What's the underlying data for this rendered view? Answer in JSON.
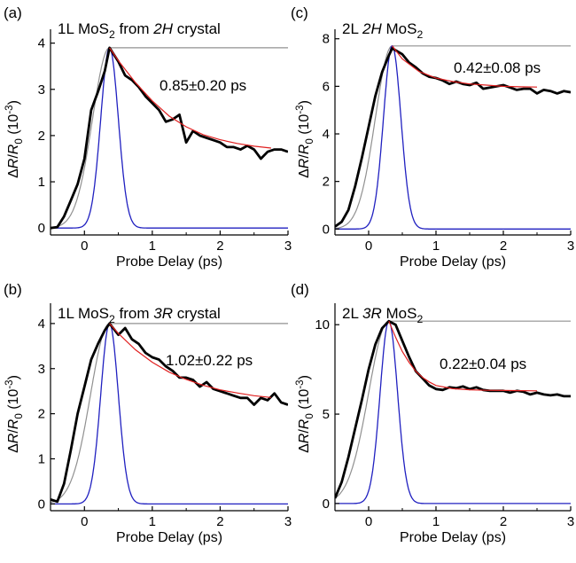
{
  "chart_data": [
    {
      "panel_label": "(a)",
      "title_parts": [
        {
          "t": "1L MoS"
        },
        {
          "t": "2",
          "sub": true
        },
        {
          "t": " from "
        },
        {
          "t": "2",
          "it": true
        },
        {
          "t": "H",
          "it": true
        },
        {
          "t": " crystal"
        }
      ],
      "annotation": "0.85±0.20 ps",
      "type": "line",
      "xlabel": "Probe Delay (ps)",
      "ylabel_parts": [
        {
          "t": "Δ"
        },
        {
          "t": "R",
          "it": true
        },
        {
          "t": "/"
        },
        {
          "t": "R",
          "it": true
        },
        {
          "t": "0",
          "sub": true
        },
        {
          "t": " (10"
        },
        {
          "t": "-3",
          "sup": true
        },
        {
          "t": ")"
        }
      ],
      "xlim": [
        -0.5,
        3
      ],
      "ylim": [
        -0.15,
        4.3
      ],
      "xticks": [
        0,
        1,
        2,
        3
      ],
      "yticks": [
        0,
        1,
        2,
        3,
        4
      ],
      "peak": {
        "x": 0.37,
        "y": 3.9
      },
      "pulse_sigma": 0.13,
      "rise_sigma": 0.25,
      "series": [
        {
          "role": "data",
          "color": "#000000",
          "x": [
            -0.5,
            -0.4,
            -0.3,
            -0.2,
            -0.1,
            0.0,
            0.1,
            0.2,
            0.3,
            0.37,
            0.5,
            0.6,
            0.7,
            0.8,
            0.9,
            1.0,
            1.1,
            1.2,
            1.3,
            1.4,
            1.5,
            1.6,
            1.7,
            1.8,
            1.9,
            2.0,
            2.1,
            2.2,
            2.3,
            2.4,
            2.5,
            2.6,
            2.7,
            2.8,
            2.9,
            3.0
          ],
          "y": [
            0.0,
            0.02,
            0.25,
            0.6,
            0.95,
            1.5,
            2.55,
            2.95,
            3.4,
            3.9,
            3.6,
            3.3,
            3.2,
            3.05,
            2.85,
            2.7,
            2.55,
            2.3,
            2.35,
            2.45,
            1.85,
            2.1,
            2.0,
            1.95,
            1.9,
            1.85,
            1.75,
            1.75,
            1.7,
            1.78,
            1.7,
            1.5,
            1.65,
            1.7,
            1.7,
            1.65
          ]
        },
        {
          "role": "fit",
          "color": "#e02020",
          "x": [
            0.37,
            0.5,
            0.75,
            1.0,
            1.25,
            1.5,
            1.75,
            2.0,
            2.25,
            2.5,
            2.75
          ],
          "y": [
            3.9,
            3.62,
            3.15,
            2.75,
            2.42,
            2.19,
            2.02,
            1.91,
            1.83,
            1.77,
            1.73
          ]
        },
        {
          "role": "rise",
          "color": "#909090"
        },
        {
          "role": "pulse",
          "color": "#2020c0"
        }
      ]
    },
    {
      "panel_label": "(c)",
      "title_parts": [
        {
          "t": "2L "
        },
        {
          "t": "2",
          "it": true
        },
        {
          "t": "H",
          "it": true
        },
        {
          "t": " MoS"
        },
        {
          "t": "2",
          "sub": true
        }
      ],
      "annotation": "0.42±0.08 ps",
      "type": "line",
      "xlabel": "Probe Delay (ps)",
      "ylabel_parts": [
        {
          "t": "Δ"
        },
        {
          "t": "R",
          "it": true
        },
        {
          "t": "/"
        },
        {
          "t": "R",
          "it": true
        },
        {
          "t": "0",
          "sub": true
        },
        {
          "t": " (10"
        },
        {
          "t": "-3",
          "sup": true
        },
        {
          "t": ")"
        }
      ],
      "xlim": [
        -0.5,
        3
      ],
      "ylim": [
        -0.25,
        8.4
      ],
      "xticks": [
        0,
        1,
        2,
        3
      ],
      "yticks": [
        0,
        2,
        4,
        6,
        8
      ],
      "peak": {
        "x": 0.35,
        "y": 7.7
      },
      "pulse_sigma": 0.13,
      "rise_sigma": 0.25,
      "series": [
        {
          "role": "data",
          "color": "#000000",
          "x": [
            -0.5,
            -0.4,
            -0.3,
            -0.2,
            -0.1,
            0.0,
            0.1,
            0.2,
            0.3,
            0.35,
            0.5,
            0.6,
            0.7,
            0.8,
            0.9,
            1.0,
            1.1,
            1.2,
            1.3,
            1.4,
            1.5,
            1.6,
            1.7,
            1.8,
            1.9,
            2.0,
            2.1,
            2.2,
            2.3,
            2.4,
            2.5,
            2.6,
            2.7,
            2.8,
            2.9,
            3.0
          ],
          "y": [
            0.1,
            0.3,
            0.8,
            1.8,
            3.0,
            4.3,
            5.6,
            6.6,
            7.3,
            7.6,
            7.35,
            7.0,
            6.8,
            6.55,
            6.4,
            6.35,
            6.25,
            6.1,
            6.2,
            6.1,
            6.05,
            6.15,
            5.9,
            5.95,
            6.0,
            6.05,
            5.95,
            5.85,
            5.9,
            5.9,
            5.7,
            5.85,
            5.8,
            5.7,
            5.8,
            5.75
          ]
        },
        {
          "role": "fit",
          "color": "#e02020",
          "x": [
            0.35,
            0.5,
            0.75,
            1.0,
            1.25,
            1.5,
            1.75,
            2.0,
            2.25,
            2.5
          ],
          "y": [
            7.7,
            7.15,
            6.62,
            6.35,
            6.2,
            6.1,
            6.05,
            6.0,
            5.98,
            5.97
          ]
        },
        {
          "role": "rise",
          "color": "#909090"
        },
        {
          "role": "pulse",
          "color": "#2020c0"
        }
      ]
    },
    {
      "panel_label": "(b)",
      "title_parts": [
        {
          "t": "1L MoS"
        },
        {
          "t": "2",
          "sub": true
        },
        {
          "t": " from "
        },
        {
          "t": "3",
          "it": true
        },
        {
          "t": "R",
          "it": true
        },
        {
          "t": " crystal"
        }
      ],
      "annotation": "1.02±0.22 ps",
      "type": "line",
      "xlabel": "Probe Delay (ps)",
      "ylabel_parts": [
        {
          "t": "Δ"
        },
        {
          "t": "R",
          "it": true
        },
        {
          "t": "/"
        },
        {
          "t": "R",
          "it": true
        },
        {
          "t": "0",
          "sub": true
        },
        {
          "t": " (10"
        },
        {
          "t": "-3",
          "sup": true
        },
        {
          "t": ")"
        }
      ],
      "xlim": [
        -0.5,
        3
      ],
      "ylim": [
        -0.15,
        4.45
      ],
      "xticks": [
        0,
        1,
        2,
        3
      ],
      "yticks": [
        0,
        1,
        2,
        3,
        4
      ],
      "peak": {
        "x": 0.37,
        "y": 4.0
      },
      "pulse_sigma": 0.13,
      "rise_sigma": 0.28,
      "series": [
        {
          "role": "data",
          "color": "#000000",
          "x": [
            -0.5,
            -0.4,
            -0.3,
            -0.2,
            -0.1,
            0.0,
            0.1,
            0.2,
            0.3,
            0.37,
            0.5,
            0.6,
            0.7,
            0.8,
            0.9,
            1.0,
            1.1,
            1.2,
            1.3,
            1.4,
            1.5,
            1.6,
            1.7,
            1.8,
            1.9,
            2.0,
            2.1,
            2.2,
            2.3,
            2.4,
            2.5,
            2.6,
            2.7,
            2.8,
            2.9,
            3.0
          ],
          "y": [
            0.1,
            0.05,
            0.45,
            1.2,
            2.0,
            2.6,
            3.2,
            3.55,
            3.85,
            4.0,
            3.75,
            3.9,
            3.65,
            3.55,
            3.35,
            3.25,
            3.2,
            3.05,
            2.95,
            2.8,
            2.8,
            2.75,
            2.6,
            2.7,
            2.55,
            2.5,
            2.45,
            2.4,
            2.35,
            2.35,
            2.2,
            2.35,
            2.3,
            2.45,
            2.25,
            2.2
          ]
        },
        {
          "role": "fit",
          "color": "#e02020",
          "x": [
            0.37,
            0.5,
            0.75,
            1.0,
            1.25,
            1.5,
            1.75,
            2.0,
            2.25,
            2.5,
            2.75
          ],
          "y": [
            4.0,
            3.78,
            3.42,
            3.14,
            2.92,
            2.76,
            2.63,
            2.53,
            2.46,
            2.4,
            2.36
          ]
        },
        {
          "role": "rise",
          "color": "#909090"
        },
        {
          "role": "pulse",
          "color": "#2020c0"
        }
      ]
    },
    {
      "panel_label": "(d)",
      "title_parts": [
        {
          "t": "2L "
        },
        {
          "t": "3",
          "it": true
        },
        {
          "t": "R",
          "it": true
        },
        {
          "t": " MoS"
        },
        {
          "t": "2",
          "sub": true
        }
      ],
      "annotation": "0.22±0.04 ps",
      "type": "line",
      "xlabel": "Probe Delay (ps)",
      "ylabel_parts": [
        {
          "t": "Δ"
        },
        {
          "t": "R",
          "it": true
        },
        {
          "t": "/"
        },
        {
          "t": "R",
          "it": true
        },
        {
          "t": "0",
          "sub": true
        },
        {
          "t": " (10"
        },
        {
          "t": "-3",
          "sup": true
        },
        {
          "t": ")"
        }
      ],
      "xlim": [
        -0.5,
        3
      ],
      "ylim": [
        -0.4,
        11.2
      ],
      "xticks": [
        0,
        1,
        2,
        3
      ],
      "yticks": [
        0,
        5,
        10
      ],
      "peak": {
        "x": 0.3,
        "y": 10.2
      },
      "pulse_sigma": 0.13,
      "rise_sigma": 0.3,
      "series": [
        {
          "role": "data",
          "color": "#000000",
          "x": [
            -0.5,
            -0.4,
            -0.3,
            -0.2,
            -0.1,
            0.0,
            0.1,
            0.2,
            0.3,
            0.4,
            0.5,
            0.6,
            0.7,
            0.8,
            0.9,
            1.0,
            1.1,
            1.2,
            1.3,
            1.4,
            1.5,
            1.6,
            1.7,
            1.8,
            1.9,
            2.0,
            2.1,
            2.2,
            2.3,
            2.4,
            2.5,
            2.6,
            2.7,
            2.8,
            2.9,
            3.0
          ],
          "y": [
            0.3,
            1.2,
            2.6,
            4.2,
            5.8,
            7.5,
            8.9,
            9.8,
            10.2,
            10.0,
            9.1,
            8.2,
            7.4,
            7.0,
            6.6,
            6.4,
            6.35,
            6.5,
            6.45,
            6.55,
            6.4,
            6.5,
            6.35,
            6.3,
            6.3,
            6.3,
            6.2,
            6.3,
            6.25,
            6.1,
            6.2,
            6.1,
            6.05,
            6.1,
            6.0,
            6.0
          ]
        },
        {
          "role": "fit",
          "color": "#e02020",
          "x": [
            0.3,
            0.4,
            0.5,
            0.6,
            0.7,
            0.8,
            0.9,
            1.0,
            1.25,
            1.5,
            1.75,
            2.0,
            2.25,
            2.5
          ],
          "y": [
            10.2,
            9.3,
            8.5,
            7.9,
            7.4,
            7.05,
            6.8,
            6.6,
            6.42,
            6.36,
            6.33,
            6.32,
            6.31,
            6.3
          ]
        },
        {
          "role": "rise",
          "color": "#909090"
        },
        {
          "role": "pulse",
          "color": "#2020c0"
        }
      ]
    }
  ]
}
